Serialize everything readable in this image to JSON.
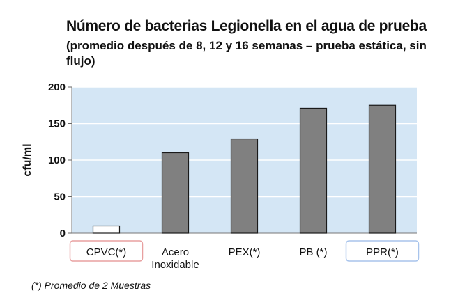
{
  "chart_data": {
    "type": "bar",
    "title": "Número de bacterias Legionella en el agua de prueba",
    "subtitle": "(promedio después de 8, 12 y 16 semanas – prueba estática, sin flujo)",
    "ylabel": "cfu/ml",
    "xlabel": "",
    "ylim": [
      0,
      200
    ],
    "yticks": [
      0,
      50,
      100,
      150,
      200
    ],
    "grid": true,
    "categories": [
      [
        "CPVC(*)"
      ],
      [
        "Acero",
        "Inoxidable"
      ],
      [
        "PEX(*)"
      ],
      [
        "PB (*)"
      ],
      [
        "PPR(*)"
      ]
    ],
    "values": [
      10,
      110,
      129,
      171,
      175
    ],
    "bar_colors": [
      "#ffffff",
      "#808080",
      "#808080",
      "#808080",
      "#808080"
    ],
    "highlighted_categories": {
      "0": "#e8a0a0",
      "4": "#a8c4ec"
    },
    "plot_background": "#d4e6f5",
    "gridline_color": "#ffffff",
    "footnote": "(*) Promedio de 2 Muestras"
  }
}
